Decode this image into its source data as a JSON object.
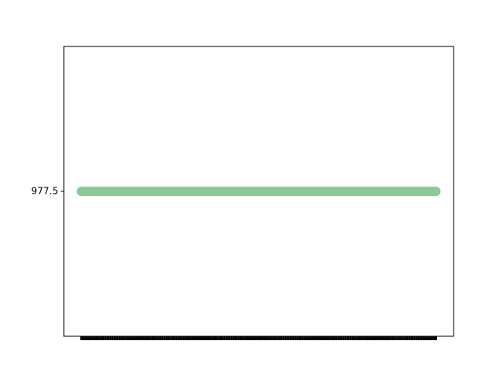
{
  "chart_data": {
    "type": "line",
    "color": "#8cc999",
    "categories": [
      null,
      null,
      null,
      null,
      null,
      null,
      null,
      null,
      null,
      null,
      null,
      null,
      null,
      null,
      null,
      null,
      null,
      null,
      null,
      null,
      null,
      null,
      null,
      null,
      null,
      null,
      null,
      null,
      null,
      null,
      null,
      null,
      null,
      null,
      null,
      null,
      null,
      null,
      null,
      null,
      null,
      null,
      null,
      null,
      null,
      null,
      null,
      null,
      null,
      null,
      null,
      null,
      null,
      null,
      null,
      null,
      null,
      null,
      null,
      null,
      null,
      null,
      null,
      null,
      null,
      null,
      null,
      null,
      null,
      null,
      null,
      null,
      null,
      null,
      null,
      null,
      null,
      null,
      null,
      null,
      null,
      null,
      null,
      null,
      null,
      null,
      null,
      null,
      null,
      null,
      null,
      null,
      null,
      null,
      null,
      null,
      null,
      null,
      null,
      null,
      null,
      null,
      null,
      null,
      null,
      null,
      null,
      null,
      null,
      null,
      null,
      null,
      null,
      null,
      null,
      null,
      null,
      null,
      null,
      null,
      null,
      null,
      null,
      null,
      null,
      null,
      null,
      null,
      null,
      null,
      null,
      null,
      null,
      null,
      null,
      null,
      null,
      null,
      null,
      null,
      null,
      null,
      null,
      null,
      null,
      null,
      null,
      null,
      null,
      null
    ],
    "values": [
      977.5,
      977.5,
      977.5,
      977.5,
      977.5,
      977.5,
      977.5,
      977.5,
      977.5,
      977.5,
      977.5,
      977.5,
      977.5,
      977.5,
      977.5,
      977.5,
      977.5,
      977.5,
      977.5,
      977.5,
      977.5,
      977.5,
      977.5,
      977.5,
      977.5,
      977.5,
      977.5,
      977.5,
      977.5,
      977.5,
      977.5,
      977.5,
      977.5,
      977.5,
      977.5,
      977.5,
      977.5,
      977.5,
      977.5,
      977.5,
      977.5,
      977.5,
      977.5,
      977.5,
      977.5,
      977.5,
      977.5,
      977.5,
      977.5,
      977.5,
      977.5,
      977.5,
      977.5,
      977.5,
      977.5,
      977.5,
      977.5,
      977.5,
      977.5,
      977.5,
      977.5,
      977.5,
      977.5,
      977.5,
      977.5,
      977.5,
      977.5,
      977.5,
      977.5,
      977.5,
      977.5,
      977.5,
      977.5,
      977.5,
      977.5,
      977.5,
      977.5,
      977.5,
      977.5,
      977.5,
      977.5,
      977.5,
      977.5,
      977.5,
      977.5,
      977.5,
      977.5,
      977.5,
      977.5,
      977.5,
      977.5,
      977.5,
      977.5,
      977.5,
      977.5,
      977.5,
      977.5,
      977.5,
      977.5,
      977.5,
      977.5,
      977.5,
      977.5,
      977.5,
      977.5,
      977.5,
      977.5,
      977.5,
      977.5,
      977.5,
      977.5,
      977.5,
      977.5,
      977.5,
      977.5,
      977.5,
      977.5,
      977.5,
      977.5,
      977.5,
      977.5,
      977.5,
      977.5,
      977.5,
      977.5,
      977.5,
      977.5,
      977.5,
      977.5,
      977.5,
      977.5,
      977.5,
      977.5,
      977.5,
      977.5,
      977.5,
      977.5,
      977.5,
      977.5,
      977.5,
      977.5,
      977.5,
      977.5,
      977.5,
      977.5,
      977.5,
      977.5,
      977.5,
      977.5,
      977.5
    ],
    "ylim": [
      976.4,
      978.6
    ],
    "yticks": [
      977.5
    ]
  }
}
